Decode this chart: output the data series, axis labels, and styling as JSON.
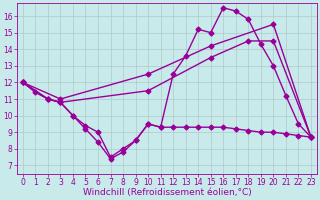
{
  "background_color": "#c8eaea",
  "line_color": "#990099",
  "grid_color": "#b0c8c8",
  "xlabel": "Windchill (Refroidissement éolien,°C)",
  "xlim": [
    -0.5,
    23.5
  ],
  "ylim": [
    6.5,
    16.8
  ],
  "xticks": [
    0,
    1,
    2,
    3,
    4,
    5,
    6,
    7,
    8,
    9,
    10,
    11,
    12,
    13,
    14,
    15,
    16,
    17,
    18,
    19,
    20,
    21,
    22,
    23
  ],
  "yticks": [
    7,
    8,
    9,
    10,
    11,
    12,
    13,
    14,
    15,
    16
  ],
  "line1_x": [
    0,
    1,
    2,
    3,
    4,
    5,
    6,
    7,
    8,
    9,
    10,
    11,
    12,
    13,
    14,
    15,
    16,
    17,
    18,
    19,
    20,
    21,
    22,
    23
  ],
  "line1_y": [
    12.0,
    11.4,
    11.0,
    10.8,
    10.0,
    9.2,
    8.4,
    7.4,
    7.8,
    8.5,
    9.5,
    9.3,
    12.5,
    13.6,
    15.2,
    15.0,
    16.5,
    16.3,
    15.8,
    14.3,
    13.0,
    11.2,
    9.5,
    8.7
  ],
  "line2_x": [
    0,
    2,
    3,
    4,
    5,
    6,
    7,
    8,
    9,
    10,
    11,
    12,
    13,
    14,
    15,
    16,
    17,
    18,
    19,
    20,
    21,
    22,
    23
  ],
  "line2_y": [
    12.0,
    11.0,
    10.8,
    10.0,
    9.4,
    9.0,
    7.5,
    8.0,
    8.5,
    9.5,
    9.3,
    9.3,
    9.3,
    9.3,
    9.3,
    9.3,
    9.2,
    9.1,
    9.0,
    9.0,
    8.9,
    8.8,
    8.7
  ],
  "line3_x": [
    0,
    2,
    3,
    10,
    15,
    18,
    20,
    23
  ],
  "line3_y": [
    12.0,
    11.0,
    10.8,
    11.5,
    13.5,
    14.5,
    14.5,
    8.7
  ],
  "line4_x": [
    0,
    3,
    10,
    15,
    20,
    23
  ],
  "line4_y": [
    12.0,
    11.0,
    12.5,
    14.2,
    15.5,
    8.7
  ],
  "marker": "D",
  "markersize": 2.5,
  "linewidth": 1.0,
  "tick_fontsize": 5.5,
  "xlabel_fontsize": 6.5
}
